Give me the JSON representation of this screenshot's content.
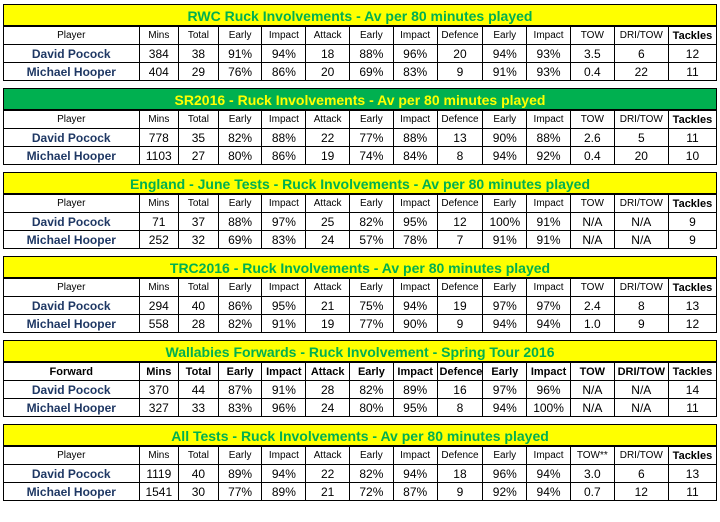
{
  "blocks": [
    {
      "title": "RWC Ruck Involvements - Av per 80 minutes played",
      "headers": [
        "Player",
        "Mins",
        "Total",
        "Early",
        "Impact",
        "Attack",
        "Early",
        "Impact",
        "Defence",
        "Early",
        "Impact",
        "TOW",
        "DRI/TOW",
        "Tackles"
      ],
      "rows": [
        [
          "David Pocock",
          "384",
          "38",
          "91%",
          "94%",
          "18",
          "88%",
          "96%",
          "20",
          "94%",
          "93%",
          "3.5",
          "6",
          "12"
        ],
        [
          "Michael Hooper",
          "404",
          "29",
          "76%",
          "86%",
          "20",
          "69%",
          "83%",
          "9",
          "91%",
          "93%",
          "0.4",
          "22",
          "11"
        ]
      ]
    },
    {
      "title": "SR2016 -  Ruck Involvements - Av per 80 minutes played",
      "headers": [
        "Player",
        "Mins",
        "Total",
        "Early",
        "Impact",
        "Attack",
        "Early",
        "Impact",
        "Defence",
        "Early",
        "Impact",
        "TOW",
        "DRI/TOW",
        "Tackles"
      ],
      "rows": [
        [
          "David Pocock",
          "778",
          "35",
          "82%",
          "88%",
          "22",
          "77%",
          "88%",
          "13",
          "90%",
          "88%",
          "2.6",
          "5",
          "11"
        ],
        [
          "Michael Hooper",
          "1103",
          "27",
          "80%",
          "86%",
          "19",
          "74%",
          "84%",
          "8",
          "94%",
          "92%",
          "0.4",
          "20",
          "10"
        ]
      ]
    },
    {
      "title": "England - June Tests - Ruck Involvements - Av per 80 minutes played",
      "headers": [
        "Player",
        "Mins",
        "Total",
        "Early",
        "Impact",
        "Attack",
        "Early",
        "Impact",
        "Defence",
        "Early",
        "Impact",
        "TOW",
        "DRI/TOW",
        "Tackles"
      ],
      "rows": [
        [
          "David Pocock",
          "71",
          "37",
          "88%",
          "97%",
          "25",
          "82%",
          "95%",
          "12",
          "100%",
          "91%",
          "N/A",
          "N/A",
          "9"
        ],
        [
          "Michael Hooper",
          "252",
          "32",
          "69%",
          "83%",
          "24",
          "57%",
          "78%",
          "7",
          "91%",
          "91%",
          "N/A",
          "N/A",
          "9"
        ]
      ]
    },
    {
      "title": "TRC2016 - Ruck Involvements - Av per 80 minutes played",
      "headers": [
        "Player",
        "Mins",
        "Total",
        "Early",
        "Impact",
        "Attack",
        "Early",
        "Impact",
        "Defence",
        "Early",
        "Impact",
        "TOW",
        "DRI/TOW",
        "Tackles"
      ],
      "rows": [
        [
          "David Pocock",
          "294",
          "40",
          "86%",
          "95%",
          "21",
          "75%",
          "94%",
          "19",
          "97%",
          "97%",
          "2.4",
          "8",
          "13"
        ],
        [
          "Michael Hooper",
          "558",
          "28",
          "82%",
          "91%",
          "19",
          "77%",
          "90%",
          "9",
          "94%",
          "94%",
          "1.0",
          "9",
          "12"
        ]
      ]
    },
    {
      "title": "Wallabies Forwards - Ruck Involvement - Spring Tour 2016",
      "headers": [
        "Forward",
        "Mins",
        "Total",
        "Early",
        "Impact",
        "Attack",
        "Early",
        "Impact",
        "Defence",
        "Early",
        "Impact",
        "TOW",
        "DRI/TOW",
        "Tackles"
      ],
      "rows": [
        [
          "David Pocock",
          "370",
          "44",
          "87%",
          "91%",
          "28",
          "82%",
          "89%",
          "16",
          "97%",
          "96%",
          "N/A",
          "N/A",
          "14"
        ],
        [
          "Michael Hooper",
          "327",
          "33",
          "83%",
          "96%",
          "24",
          "80%",
          "95%",
          "8",
          "94%",
          "100%",
          "N/A",
          "N/A",
          "11"
        ]
      ]
    },
    {
      "title": "All Tests - Ruck Involvements - Av per 80 minutes played",
      "headers": [
        "Player",
        "Mins",
        "Total",
        "Early",
        "Impact",
        "Attack",
        "Early",
        "Impact",
        "Defence",
        "Early",
        "Impact",
        "TOW**",
        "DRI/TOW",
        "Tackles"
      ],
      "rows": [
        [
          "David Pocock",
          "1119",
          "40",
          "89%",
          "94%",
          "22",
          "82%",
          "94%",
          "18",
          "96%",
          "94%",
          "3.0",
          "6",
          "13"
        ],
        [
          "Michael Hooper",
          "1541",
          "30",
          "77%",
          "89%",
          "21",
          "72%",
          "87%",
          "9",
          "92%",
          "94%",
          "0.7",
          "12",
          "11"
        ]
      ]
    }
  ]
}
